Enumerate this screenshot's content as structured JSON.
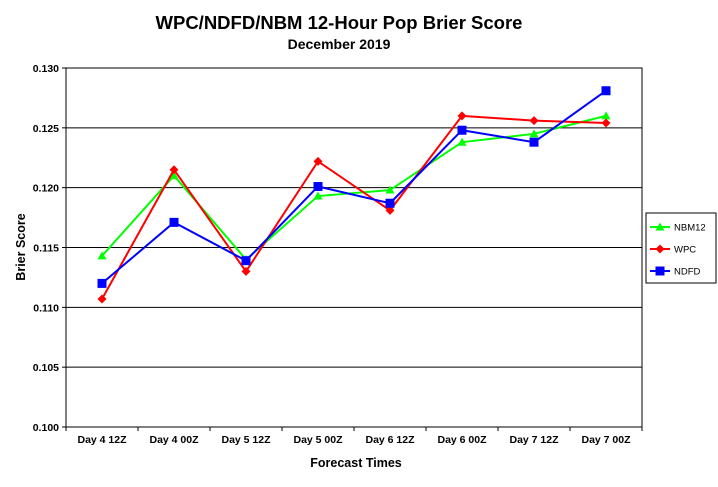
{
  "chart_data": {
    "type": "line",
    "title": "WPC/NDFD/NBM  12-Hour Pop Brier Score",
    "subtitle": "December 2019",
    "xlabel": "Forecast Times",
    "ylabel": "Brier Score",
    "categories": [
      "Day 4 12Z",
      "Day 4 00Z",
      "Day 5 12Z",
      "Day 5 00Z",
      "Day 6 12Z",
      "Day 6 00Z",
      "Day 7 12Z",
      "Day 7 00Z"
    ],
    "ylim": [
      0.1,
      0.13
    ],
    "yticks": [
      "0.130",
      "0.125",
      "0.120",
      "0.115",
      "0.110",
      "0.105",
      "0.100"
    ],
    "grid": "horizontal",
    "legend_position": "right",
    "series": [
      {
        "name": "NBM12",
        "color": "#00ff00",
        "marker": "triangle",
        "values": [
          0.1143,
          0.121,
          0.114,
          0.1193,
          0.1198,
          0.1238,
          0.1245,
          0.126
        ]
      },
      {
        "name": "WPC",
        "color": "#ff0000",
        "marker": "diamond",
        "values": [
          0.1107,
          0.1215,
          0.113,
          0.1222,
          0.1181,
          0.126,
          0.1256,
          0.1254
        ]
      },
      {
        "name": "NDFD",
        "color": "#0000ff",
        "marker": "square",
        "values": [
          0.112,
          0.1171,
          0.1139,
          0.1201,
          0.1187,
          0.1248,
          0.1238,
          0.1281
        ]
      }
    ]
  }
}
